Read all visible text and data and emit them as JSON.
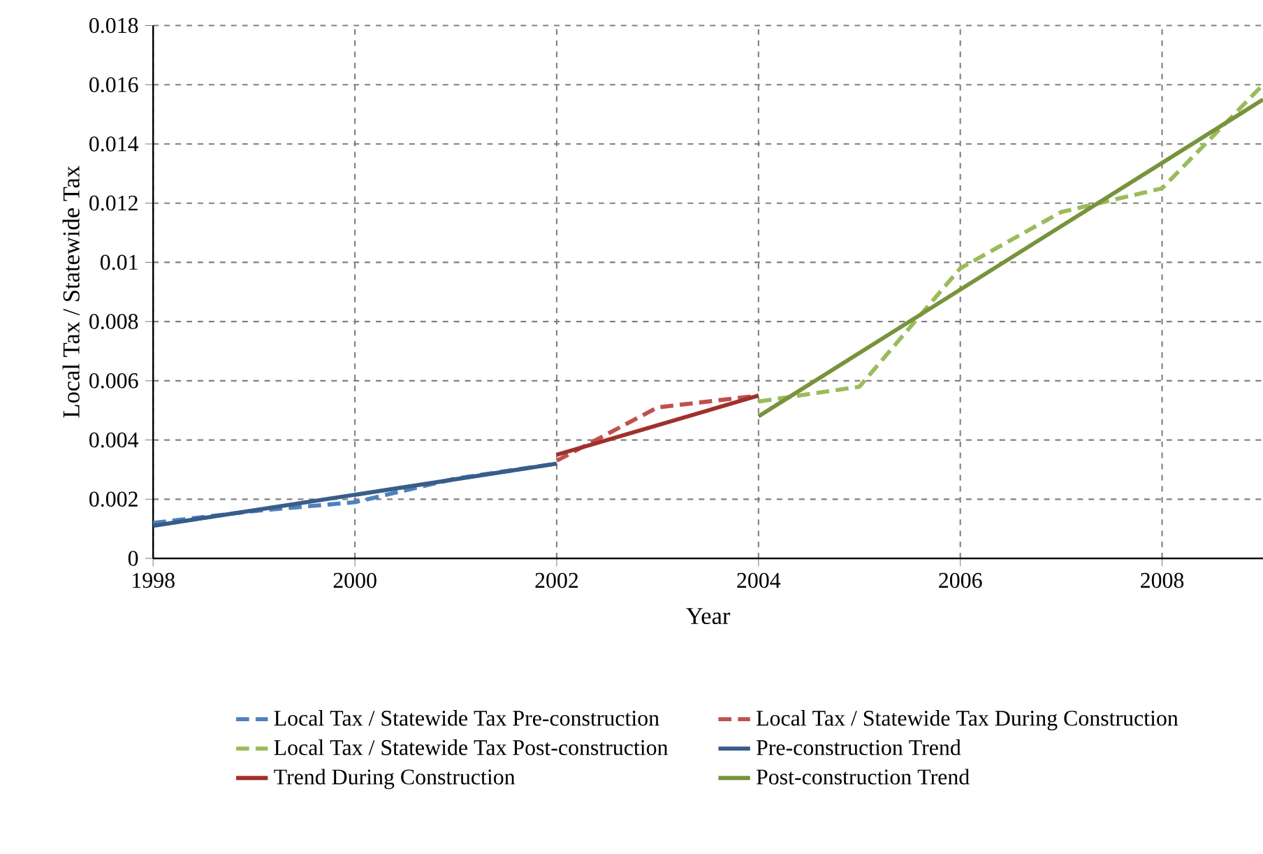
{
  "chart_data": {
    "type": "line",
    "xlabel": "Year",
    "ylabel": "Local Tax / Statewide Tax",
    "xlim": [
      1998,
      2009
    ],
    "xticks": [
      1998,
      2000,
      2002,
      2004,
      2006,
      2008
    ],
    "ylim": [
      0,
      0.018
    ],
    "yticks": [
      0,
      0.002,
      0.004,
      0.006,
      0.008,
      0.01,
      0.012,
      0.014,
      0.016,
      0.018
    ],
    "grid": true,
    "legend": "bottom",
    "marker": "none",
    "series": [
      {
        "name": "Local Tax / Statewide Tax Pre-construction",
        "color": "#4f81bd",
        "line_style": "dashed",
        "x": [
          1998,
          1999,
          2000,
          2001,
          2002
        ],
        "values": [
          0.0012,
          0.0016,
          0.0019,
          0.0027,
          0.0032
        ]
      },
      {
        "name": "Local Tax / Statewide Tax During Construction",
        "color": "#c0504d",
        "line_style": "dashed",
        "x": [
          2002,
          2003,
          2004
        ],
        "values": [
          0.0033,
          0.0051,
          0.0055
        ]
      },
      {
        "name": "Local Tax / Statewide Tax Post-construction",
        "color": "#9bbb59",
        "line_style": "dashed",
        "x": [
          2004,
          2005,
          2006,
          2007,
          2008,
          2009
        ],
        "values": [
          0.0053,
          0.0058,
          0.0098,
          0.0117,
          0.0125,
          0.016
        ]
      },
      {
        "name": "Pre-construction Trend",
        "color": "#385d8a",
        "line_style": "solid",
        "x": [
          1998,
          2002
        ],
        "values": [
          0.0011,
          0.0032
        ]
      },
      {
        "name": "Trend During Construction",
        "color": "#a0302d",
        "line_style": "solid",
        "x": [
          2002,
          2004
        ],
        "values": [
          0.0035,
          0.0055
        ]
      },
      {
        "name": "Post-construction Trend",
        "color": "#77933c",
        "line_style": "solid",
        "x": [
          2004,
          2009
        ],
        "values": [
          0.0048,
          0.0155
        ]
      }
    ]
  }
}
